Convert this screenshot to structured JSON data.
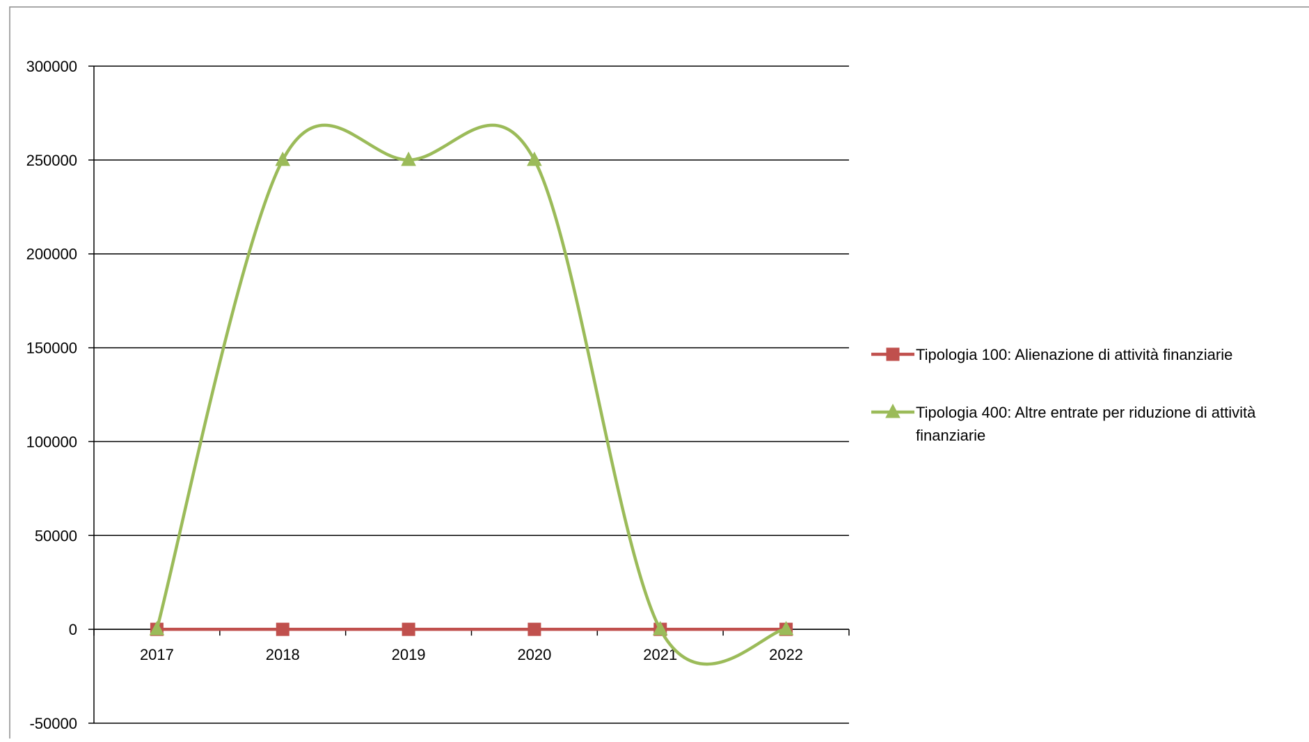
{
  "chart_data": {
    "type": "line",
    "title": "",
    "xlabel": "",
    "ylabel": "",
    "categories": [
      "2017",
      "2018",
      "2019",
      "2020",
      "2021",
      "2022"
    ],
    "ylim": [
      -50000,
      300000
    ],
    "yticks": [
      -50000,
      0,
      50000,
      100000,
      150000,
      200000,
      250000,
      300000
    ],
    "ytick_labels": [
      "-50000",
      "0",
      "50000",
      "100000",
      "150000",
      "200000",
      "250000",
      "300000"
    ],
    "grid": "horizontal",
    "smooth": true,
    "legend_position": "right",
    "series": [
      {
        "name": "Tipologia 100: Alienazione di attività finanziarie",
        "values": [
          0,
          0,
          0,
          0,
          0,
          0
        ],
        "color": "#c0504d",
        "marker": "square"
      },
      {
        "name": "Tipologia 400: Altre entrate per riduzione di attività finanziarie",
        "legend_lines": [
          "Tipologia 400: Altre entrate per riduzione di attività",
          "finanziarie"
        ],
        "values": [
          0,
          250000,
          250000,
          250000,
          0,
          0
        ],
        "color": "#9bbb59",
        "marker": "triangle"
      }
    ]
  }
}
